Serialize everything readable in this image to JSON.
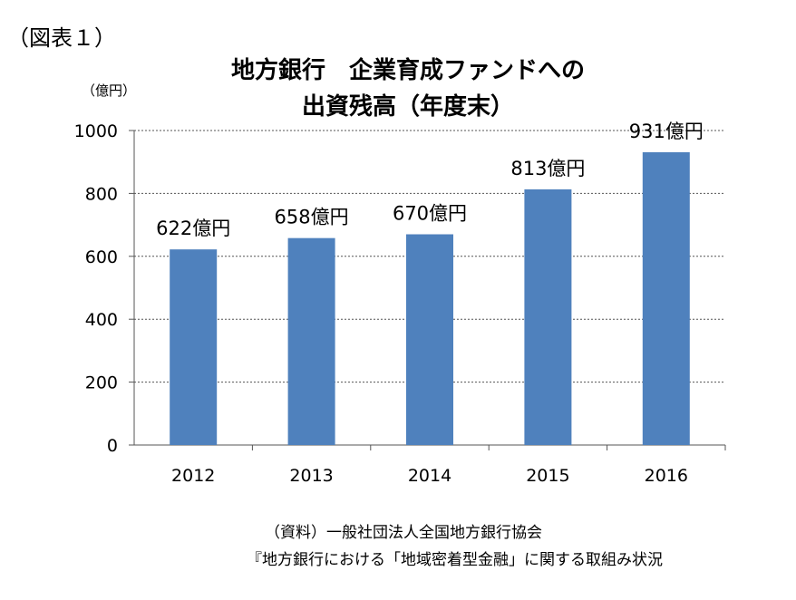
{
  "figure_label": "（図表１）",
  "chart_data": {
    "type": "bar",
    "title_line1": "地方銀行　企業育成ファンドへの",
    "title_line2": "出資残高（年度末）",
    "ylabel": "（億円）",
    "categories": [
      "2012",
      "2013",
      "2014",
      "2015",
      "2016"
    ],
    "values": [
      622,
      658,
      670,
      813,
      931
    ],
    "data_labels": [
      "622億円",
      "658億円",
      "670億円",
      "813億円",
      "931億円"
    ],
    "ylim": [
      0,
      1000
    ],
    "yticks": [
      0,
      200,
      400,
      600,
      800,
      1000
    ],
    "grid": true,
    "bar_color": "#4f81bd"
  },
  "source": {
    "line1": "（資料）一般社団法人全国地方銀行協会",
    "line2": "『地方銀行における「地域密着型金融」に関する取組み状況"
  }
}
